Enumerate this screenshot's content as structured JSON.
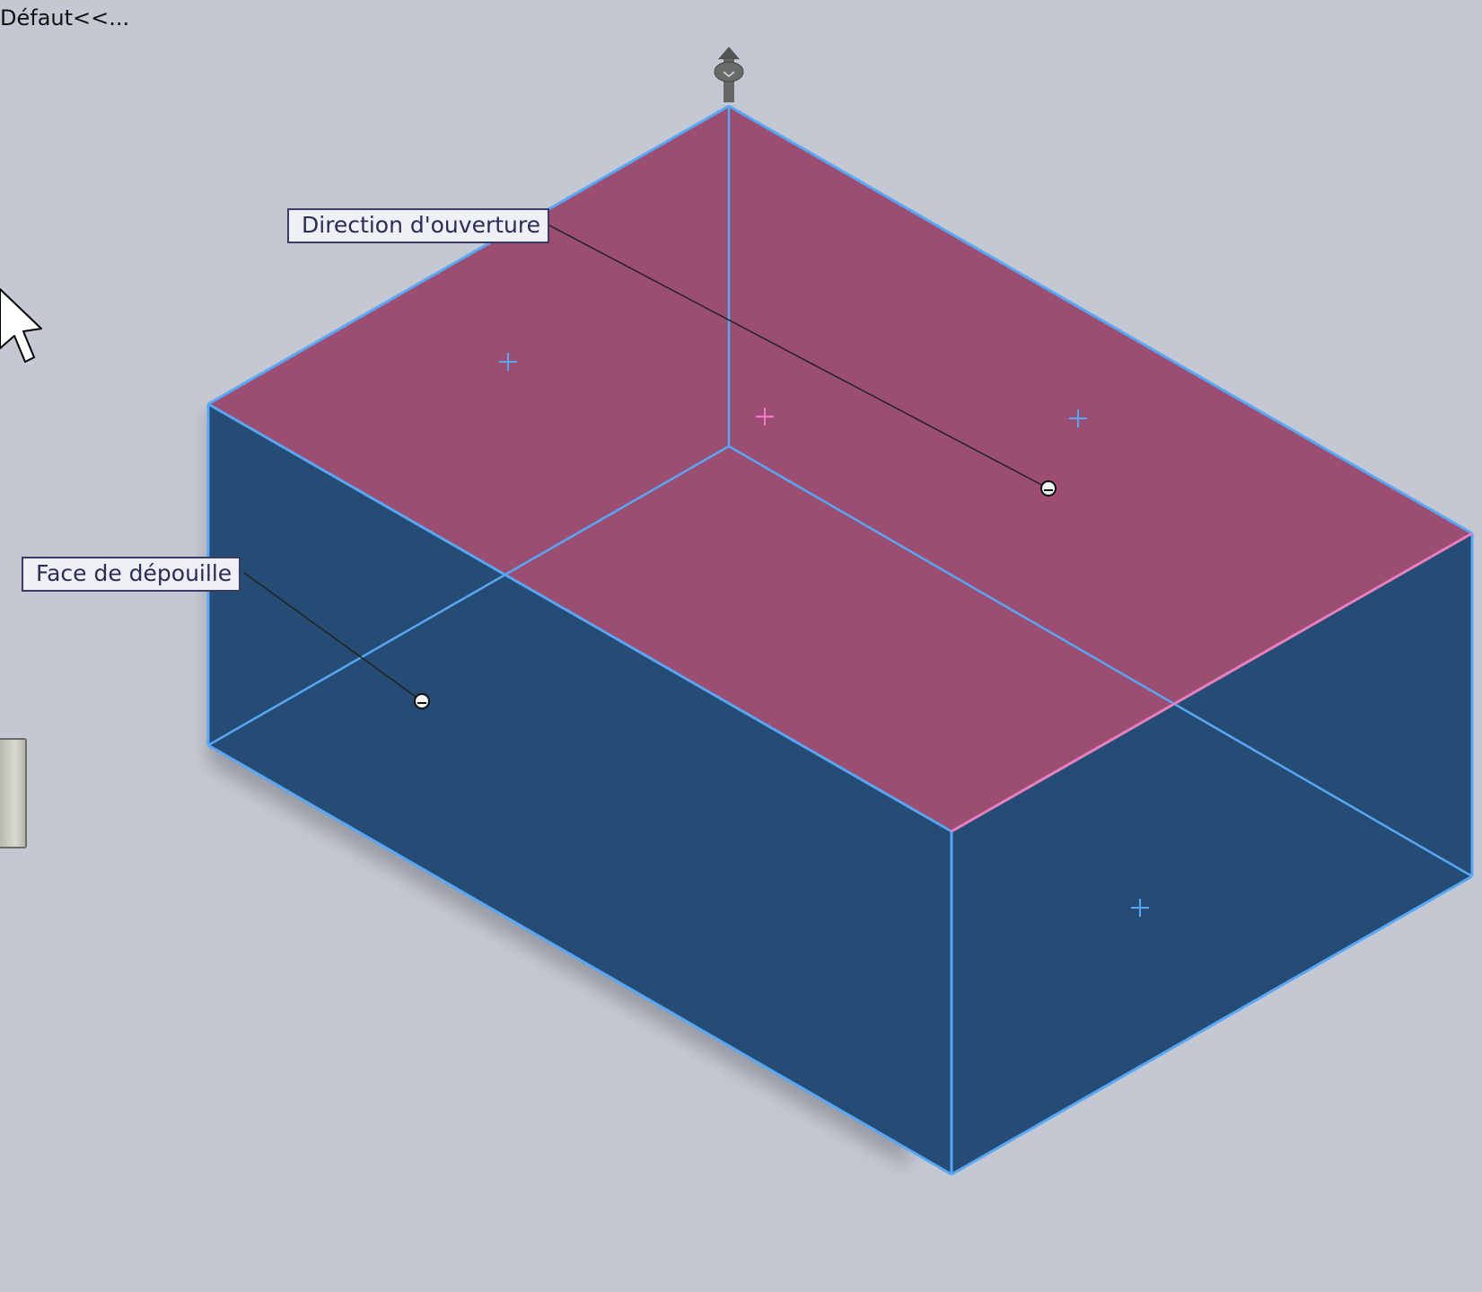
{
  "viewport": {
    "config_label": "Défaut<<...",
    "background_color": "#c4c8d2"
  },
  "callouts": {
    "pull_direction": "Direction d'ouverture",
    "draft_face": "Face de dépouille"
  },
  "colors": {
    "side_face": "#254c74",
    "top_face": "#9b4d72",
    "edge": "#58a6f4",
    "selected_edge": "#e880c0",
    "leader_line": "#222222"
  },
  "icons": {
    "pull_direction_arrow": "up-arrow-icon",
    "cursor": "mouse-pointer-icon",
    "handle": "side-panel-handle"
  }
}
